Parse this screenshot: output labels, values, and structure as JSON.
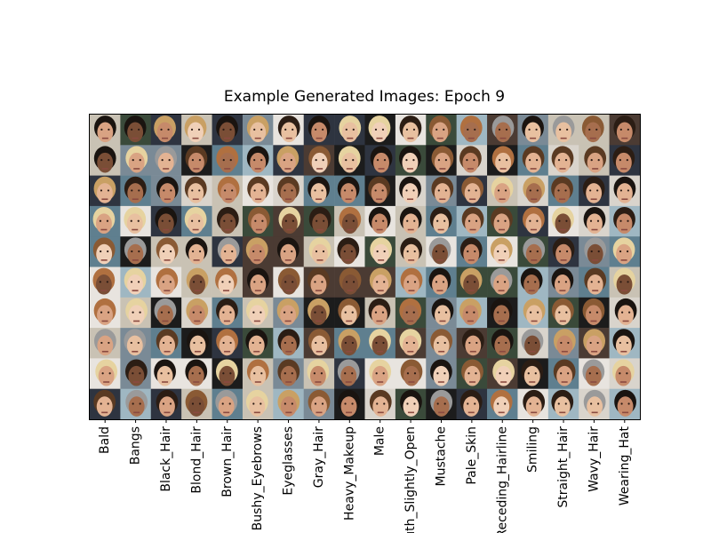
{
  "chart_data": {
    "type": "image-grid",
    "title": "Example Generated Images: Epoch 9",
    "categories": [
      "Bald",
      "Bangs",
      "Black_Hair",
      "Blond_Hair",
      "Brown_Hair",
      "Bushy_Eyebrows",
      "Eyeglasses",
      "Gray_Hair",
      "Heavy_Makeup",
      "Male",
      "Mouth_Slightly_Open",
      "Mustache",
      "Pale_Skin",
      "Receding_Hairline",
      "Smiling",
      "Straight_Hair",
      "Wavy_Hair",
      "Wearing_Hat"
    ]
  }
}
